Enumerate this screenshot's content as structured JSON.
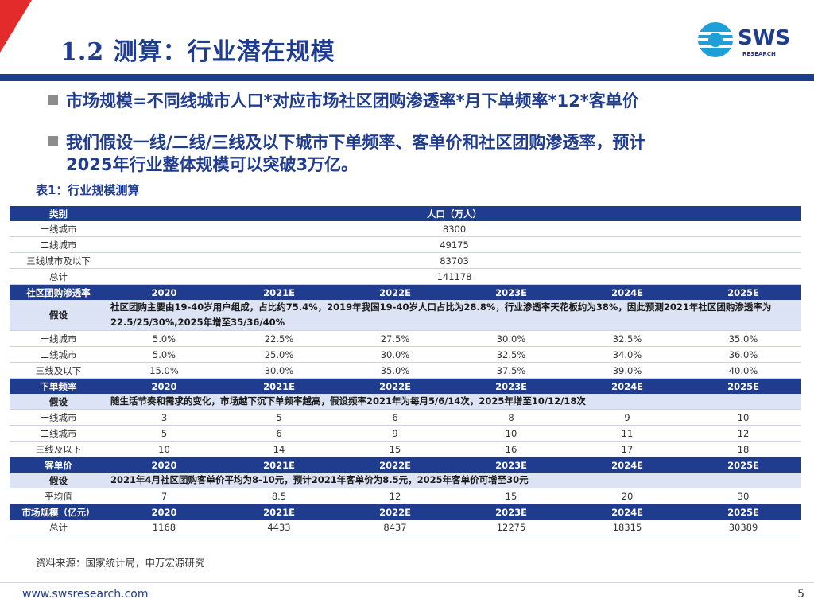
{
  "header": {
    "title": "1.2 测算：行业潜在规模",
    "logo_text": "SWS",
    "logo_subtext": "RESEARCH"
  },
  "bullets": [
    "市场规模=不同线城市人口*对应市场社区团购渗透率*月下单频率*12*客单价",
    "我们假设一线/二线/三线及以下城市下单频率、客单价和社区团购渗透率，预计",
    "2025年行业整体规模可以突破3万亿。"
  ],
  "table_caption": "表1：行业规模测算",
  "population": {
    "header": [
      "类别",
      "人口（万人）"
    ],
    "rows": [
      [
        "一线城市",
        "8300"
      ],
      [
        "二线城市",
        "49175"
      ],
      [
        "三线城市及以下",
        "83703"
      ],
      [
        "总计",
        "141178"
      ]
    ]
  },
  "penetration": {
    "header": [
      "社区团购渗透率",
      "2020",
      "2021E",
      "2022E",
      "2023E",
      "2024E",
      "2025E"
    ],
    "assumption_label": "假设",
    "assumption": "社区团购主要由19-40岁用户组成，占比约75.4%，2019年我国19-40岁人口占比为28.8%，行业渗透率天花板约为38%，因此预测2021年社区团购渗透率为22.5/25/30%,2025年增至35/36/40%",
    "rows": [
      [
        "一线城市",
        "5.0%",
        "22.5%",
        "27.5%",
        "30.0%",
        "32.5%",
        "35.0%"
      ],
      [
        "二线城市",
        "5.0%",
        "25.0%",
        "30.0%",
        "32.5%",
        "34.0%",
        "36.0%"
      ],
      [
        "三线及以下",
        "15.0%",
        "30.0%",
        "35.0%",
        "37.5%",
        "39.0%",
        "40.0%"
      ]
    ]
  },
  "frequency": {
    "header": [
      "下单频率",
      "2020",
      "2021E",
      "2022E",
      "2023E",
      "2024E",
      "2025E"
    ],
    "assumption_label": "假设",
    "assumption": "随生活节奏和需求的变化，市场越下沉下单频率越高，假设频率2021年为每月5/6/14次，2025年增至10/12/18次",
    "rows": [
      [
        "一线城市",
        "3",
        "5",
        "6",
        "8",
        "9",
        "10"
      ],
      [
        "二线城市",
        "5",
        "6",
        "9",
        "10",
        "11",
        "12"
      ],
      [
        "三线及以下",
        "10",
        "14",
        "15",
        "16",
        "17",
        "18"
      ]
    ]
  },
  "price": {
    "header": [
      "客单价",
      "2020",
      "2021E",
      "2022E",
      "2023E",
      "2024E",
      "2025E"
    ],
    "assumption_label": "假设",
    "assumption": "2021年4月社区团购客单价平均为8-10元，预计2021年客单价为8.5元，2025年客单价可增至30元",
    "rows": [
      [
        "平均值",
        "7",
        "8.5",
        "12",
        "15",
        "20",
        "30"
      ]
    ]
  },
  "market": {
    "header": [
      "市场规模（亿元）",
      "2020",
      "2021E",
      "2022E",
      "2023E",
      "2024E",
      "2025E"
    ],
    "rows": [
      [
        "总计",
        "1168",
        "4433",
        "8437",
        "12275",
        "18315",
        "30389"
      ]
    ]
  },
  "source": "资料来源：国家统计局，申万宏源研究",
  "footer": {
    "url": "www.swsresearch.com",
    "page": "5"
  },
  "colors": {
    "brand_blue": "#1f3c8e",
    "brand_red": "#e32b2b",
    "logo_cyan": "#1e9fd8",
    "assumption_bg": "#dce3f4"
  }
}
